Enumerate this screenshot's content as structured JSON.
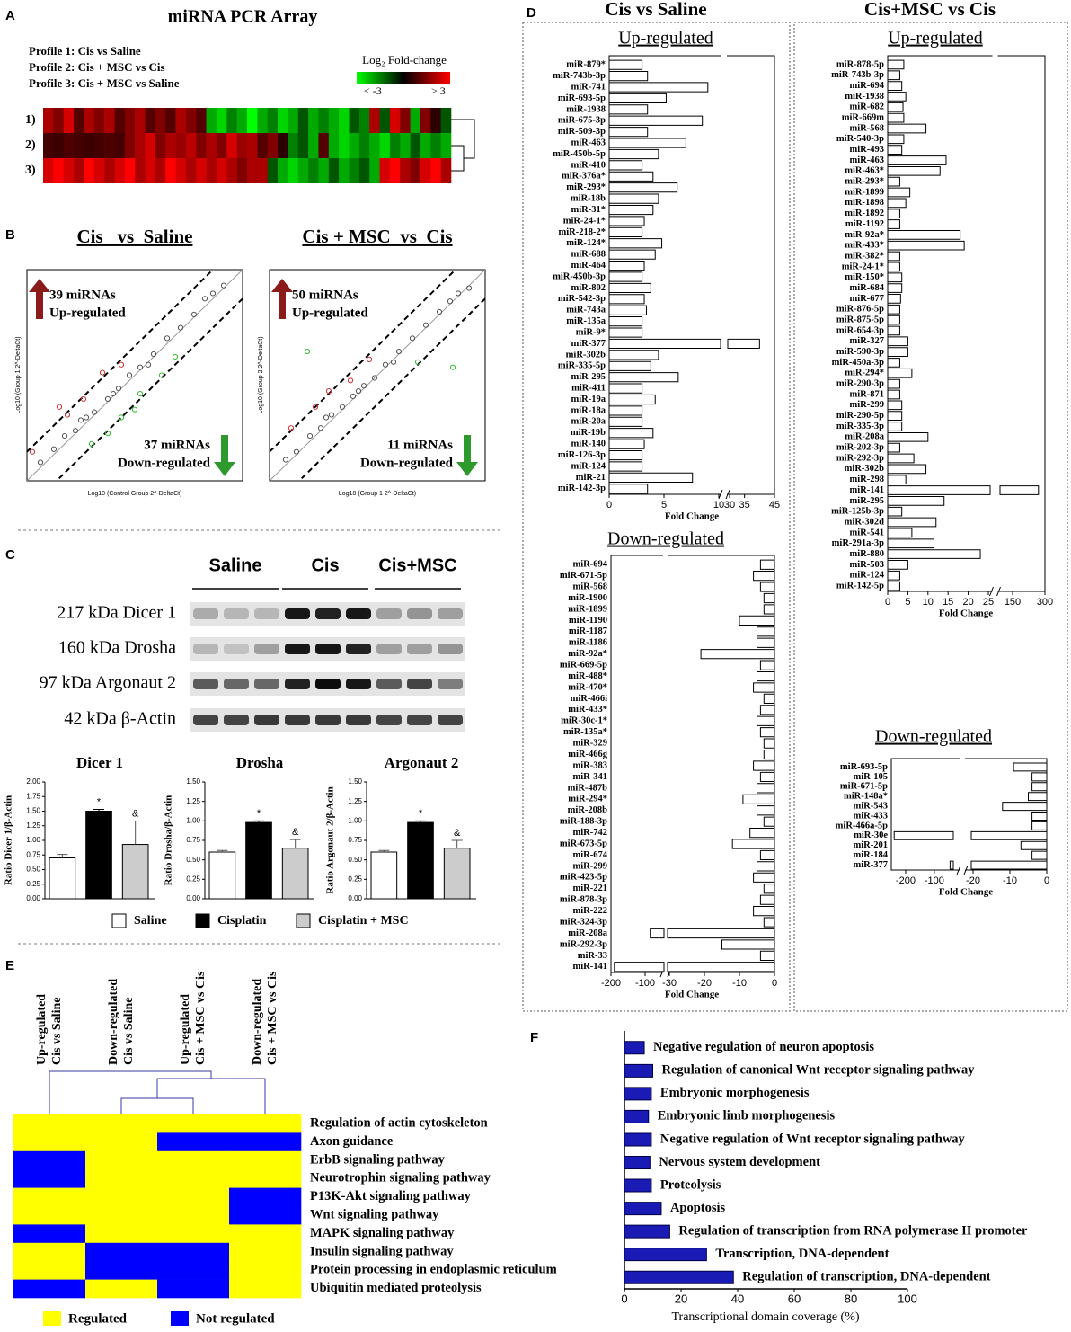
{
  "panel_labels": [
    "A",
    "B",
    "C",
    "D",
    "E",
    "F"
  ],
  "blot": {
    "column_labels": [
      "Saline",
      "Cis",
      "Cis+MSC"
    ],
    "row_labels": [
      "217 kDa Dicer 1",
      "160 kDa Drosha",
      "97 kDa Argonaut 2",
      "42 kDa β-Actin"
    ]
  },
  "panel_d": {
    "headers": [
      "Cis vs Saline",
      "Cis+MSC vs Cis"
    ]
  },
  "chart_data": [
    {
      "type": "heatmap",
      "title": "miRNA PCR Array",
      "annotations": [
        "Profile 1: Cis vs Saline",
        "Profile 2: Cis + MSC vs Cis",
        "Profile 3: Cis + MSC vs Saline"
      ],
      "legend_title": "Log₂ Fold-change",
      "clim": [
        -3,
        3
      ],
      "clim_labels": [
        "< -3",
        "> 3"
      ],
      "row_labels": [
        "1)",
        "2)",
        "3)"
      ],
      "values": [
        [
          2,
          1.5,
          2.5,
          1,
          2,
          1.5,
          2,
          1,
          1.5,
          2,
          1,
          1.5,
          1,
          2,
          1.5,
          1,
          -2,
          -2.5,
          -1.5,
          -2,
          -3,
          -2,
          -1.5,
          -2.5,
          -2,
          -1,
          -2,
          -1.5,
          -2,
          -2.5,
          -1,
          -1.5,
          2,
          -1,
          2.5,
          1.5,
          -2,
          1.5,
          0.5,
          -1
        ],
        [
          0.8,
          0.7,
          0.9,
          0.8,
          0.7,
          0.8,
          0.9,
          0.8,
          1.5,
          2,
          2.5,
          1.5,
          2,
          1.8,
          2.2,
          1.5,
          2,
          1.5,
          2.5,
          1.8,
          2,
          1,
          1.5,
          0.5,
          -1.5,
          -1,
          -2,
          1,
          -2,
          -2.5,
          -2,
          -1.5,
          -2,
          -2.5,
          -1.5,
          -2,
          -1,
          -2,
          -1.5,
          -2
        ],
        [
          2.5,
          3,
          2.5,
          2,
          3,
          2.5,
          2,
          2.5,
          3,
          2,
          2.5,
          2,
          3,
          2.5,
          2,
          2.5,
          2,
          2.5,
          2,
          1.5,
          2,
          2,
          -1,
          -2,
          -2.5,
          -2,
          -1.5,
          -2,
          -1,
          -2,
          -1.5,
          -1,
          -2,
          2.5,
          3,
          2,
          1.5,
          2.5,
          3,
          2
        ]
      ]
    },
    {
      "type": "scatter",
      "title": "Cis   vs  Saline",
      "xlabel": "Log10 (Control Group 2^-DeltaCt)",
      "ylabel": "Log10 (Group 1 2^-DeltaCt)",
      "annotations": [
        "39 miRNAs",
        "Up-regulated",
        "37 miRNAs",
        "Down-regulated"
      ],
      "xlim": [
        -6,
        2
      ],
      "ylim": [
        -6,
        2
      ],
      "series": [
        {
          "color": "#555555",
          "x": [
            -5.5,
            -5,
            -4.6,
            -4.2,
            -3.8,
            -3.5,
            -3,
            -2.6,
            -2.2,
            -1.8,
            -1.3,
            -0.8,
            -0.3,
            0.2,
            0.6,
            -4,
            -2.8,
            -1.5,
            0.9,
            1.3
          ],
          "y": [
            -5.3,
            -4.8,
            -4.3,
            -4.1,
            -3.6,
            -3.4,
            -2.9,
            -2.5,
            -2,
            -1.7,
            -1.2,
            -0.6,
            -0.2,
            0.3,
            0.9,
            -3.7,
            -2.7,
            -1.6,
            1.1,
            1.4
          ]
        },
        {
          "color": "#cc3333",
          "x": [
            -5.8,
            -4.5,
            -4.8,
            -3.2,
            -2.5,
            -3.9
          ],
          "y": [
            -4.9,
            -3.5,
            -3.2,
            -1.9,
            -1.6,
            -2.9
          ]
        },
        {
          "color": "#33bb33",
          "x": [
            -3.6,
            -2.5,
            -1.8,
            -1,
            -3,
            -0.5,
            -2
          ],
          "y": [
            -4.6,
            -3.6,
            -2.7,
            -2,
            -4.2,
            -1.3,
            -3.3
          ]
        }
      ]
    },
    {
      "type": "scatter",
      "title": "Cis + MSC  vs  Cis",
      "xlabel": "Log10 (Group 1 2^-DeltaCt)",
      "ylabel": "Log10 (Group 2 2^-DeltaCt)",
      "annotations": [
        "50 miRNAs",
        "Up-regulated",
        "11 miRNAs",
        "Down-regulated"
      ],
      "xlim": [
        -6,
        2
      ],
      "ylim": [
        -6,
        2
      ],
      "series": [
        {
          "color": "#555555",
          "x": [
            -5.4,
            -5,
            -4.5,
            -4.1,
            -3.7,
            -3.3,
            -2.9,
            -2.5,
            -2.1,
            -1.7,
            -1.2,
            -0.7,
            -0.2,
            0.3,
            0.7,
            -3.9,
            -2.7,
            -1.4,
            1,
            1.4
          ],
          "y": [
            -5.2,
            -4.9,
            -4.3,
            -4,
            -3.5,
            -3.2,
            -2.8,
            -2.4,
            -2.1,
            -1.6,
            -1.1,
            -0.6,
            -0.1,
            0.4,
            0.8,
            -3.6,
            -2.6,
            -1.5,
            1.1,
            1.3
          ]
        },
        {
          "color": "#cc3333",
          "x": [
            -5.2,
            -4.3,
            -3.8,
            -3,
            -2.3
          ],
          "y": [
            -4,
            -3.2,
            -2.6,
            -2.2,
            -1.4
          ]
        },
        {
          "color": "#33bb33",
          "x": [
            -4.6,
            0.8,
            -0.5
          ],
          "y": [
            -1.1,
            -1.7,
            -1.5
          ]
        }
      ]
    },
    {
      "type": "bar",
      "title": "Dicer 1",
      "ylabel": "Ratio Dicer 1/β-Actin",
      "values": [
        0.7,
        1.5,
        0.93
      ],
      "errors": [
        0.06,
        0.03,
        0.4
      ],
      "colors": [
        "#ffffff",
        "#000000",
        "#cccccc"
      ],
      "significance_labels": [
        null,
        "*",
        "&"
      ],
      "ylim": [
        0,
        2
      ],
      "yticks": [
        {
          "value": 0,
          "label": "0.00"
        },
        {
          "value": 0.25,
          "label": "0.25"
        },
        {
          "value": 0.5,
          "label": "0.50"
        },
        {
          "value": 0.75,
          "label": "0.75"
        },
        {
          "value": 1,
          "label": "1.00"
        },
        {
          "value": 1.25,
          "label": "1.25"
        },
        {
          "value": 1.5,
          "label": "1.50"
        },
        {
          "value": 1.75,
          "label": "1.75"
        },
        {
          "value": 2,
          "label": "2.00"
        }
      ],
      "legend": [
        {
          "name": "Saline",
          "color": "#ffffff"
        },
        {
          "name": "Cisplatin",
          "color": "#000000"
        },
        {
          "name": "Cisplatin + MSC",
          "color": "#cccccc"
        }
      ]
    },
    {
      "type": "bar",
      "title": "Drosha",
      "ylabel": "Ratio Drosha/β-Actin",
      "values": [
        0.6,
        0.98,
        0.65
      ],
      "errors": [
        0.02,
        0.02,
        0.11
      ],
      "colors": [
        "#ffffff",
        "#000000",
        "#cccccc"
      ],
      "significance_labels": [
        null,
        "*",
        "&"
      ],
      "ylim": [
        0,
        1.5
      ],
      "yticks": [
        {
          "value": 0,
          "label": "0.00"
        },
        {
          "value": 0.25,
          "label": "0.25"
        },
        {
          "value": 0.5,
          "label": "0.50"
        },
        {
          "value": 0.75,
          "label": "0.75"
        },
        {
          "value": 1,
          "label": "1.00"
        },
        {
          "value": 1.25,
          "label": "1.25"
        },
        {
          "value": 1.5,
          "label": "1.50"
        }
      ]
    },
    {
      "type": "bar",
      "title": "Argonaut 2",
      "ylabel": "Ratio Argonaut 2/β-Actin",
      "values": [
        0.6,
        0.98,
        0.65
      ],
      "errors": [
        0.02,
        0.02,
        0.1
      ],
      "colors": [
        "#ffffff",
        "#000000",
        "#cccccc"
      ],
      "significance_labels": [
        null,
        "*",
        "&"
      ],
      "ylim": [
        0,
        1.5
      ],
      "yticks": [
        {
          "value": 0,
          "label": "0.00"
        },
        {
          "value": 0.25,
          "label": "0.25"
        },
        {
          "value": 0.5,
          "label": "0.50"
        },
        {
          "value": 0.75,
          "label": "0.75"
        },
        {
          "value": 1,
          "label": "1.00"
        },
        {
          "value": 1.25,
          "label": "1.25"
        },
        {
          "value": 1.5,
          "label": "1.50"
        }
      ]
    },
    {
      "type": "hbar",
      "title": "Up-regulated",
      "xlabel": "Fold Change",
      "xlim": [
        0,
        45
      ],
      "xbreak": [
        10,
        30
      ],
      "xticks": [
        0,
        5,
        10,
        30,
        35,
        45
      ],
      "categories": [
        "miR-879*",
        "miR-743b-3p",
        "miR-741",
        "miR-693-5p",
        "miR-1938",
        "miR-675-3p",
        "miR-509-3p",
        "miR-463",
        "miR-450b-5p",
        "miR-410",
        "miR-376a*",
        "miR-293*",
        "miR-18b",
        "miR-31*",
        "miR-24-1*",
        "miR-218-2*",
        "miR-124*",
        "miR-688",
        "miR-464",
        "miR-450b-3p",
        "miR-802",
        "miR-542-3p",
        "miR-743a",
        "miR-135a",
        "miR-9*",
        "miR-377",
        "miR-302b",
        "miR-335-5p",
        "miR-295",
        "miR-411",
        "miR-19a",
        "miR-18a",
        "miR-20a",
        "miR-19b",
        "miR-140",
        "miR-126-3p",
        "miR-124",
        "miR-21",
        "miR-142-3p"
      ],
      "values": [
        3,
        3.5,
        9,
        5.2,
        3.5,
        8.5,
        3.5,
        7,
        4.5,
        3,
        4,
        6.2,
        4.5,
        4,
        3.2,
        3,
        4.8,
        4.2,
        3.2,
        3,
        3.8,
        3.2,
        3.4,
        3,
        3,
        40,
        4.5,
        3.8,
        6.3,
        3,
        4.2,
        3,
        3,
        4,
        3.2,
        3,
        3,
        7.6,
        3.5
      ]
    },
    {
      "type": "hbar",
      "title": "Down-regulated",
      "xlabel": "Fold Change",
      "xlim": [
        -200,
        0
      ],
      "xbreak": [
        -50,
        -30
      ],
      "xticks": [
        -200,
        -100,
        -30,
        -20,
        -10,
        0
      ],
      "categories": [
        "miR-694",
        "miR-671-5p",
        "miR-568",
        "miR-1900",
        "miR-1899",
        "miR-1190",
        "miR-1187",
        "miR-1186",
        "miR-92a*",
        "miR-669-5p",
        "miR-488*",
        "miR-470*",
        "miR-466i",
        "miR-433*",
        "miR-30c-1*",
        "miR-135a*",
        "miR-329",
        "miR-466g",
        "miR-383",
        "miR-341",
        "miR-487b",
        "miR-294*",
        "miR-208b",
        "miR-188-3p",
        "miR-742",
        "miR-673-5p",
        "miR-674",
        "miR-299",
        "miR-423-5p",
        "miR-221",
        "miR-878-3p",
        "miR-222",
        "miR-324-3p",
        "miR-208a",
        "miR-292-3p",
        "miR-33",
        "miR-141"
      ],
      "values": [
        -4,
        -6,
        -4,
        -3,
        -3,
        -10,
        -5,
        -5,
        -21,
        -4,
        -5,
        -6,
        -3,
        -4,
        -5,
        -4,
        -3,
        -3,
        -6,
        -4,
        -5,
        -9,
        -5,
        -3,
        -7,
        -12,
        -4,
        -5,
        -6,
        -3,
        -4,
        -6,
        -3,
        -85,
        -15,
        -4,
        -190
      ]
    },
    {
      "type": "hbar",
      "title": "Up-regulated",
      "xlabel": "Fold Change",
      "xlim": [
        0,
        300
      ],
      "xbreak": [
        25,
        100
      ],
      "xticks": [
        0,
        5,
        10,
        15,
        20,
        25,
        150,
        300
      ],
      "categories": [
        "miR-878-5p",
        "miR-743b-3p",
        "miR-694",
        "miR-1938",
        "miR-682",
        "miR-669m",
        "miR-568",
        "miR-540-3p",
        "miR-493",
        "miR-463",
        "miR-463*",
        "miR-293*",
        "miR-1899",
        "miR-1898",
        "miR-1892",
        "miR-1192",
        "miR-92a*",
        "miR-433*",
        "miR-382*",
        "miR-24-1*",
        "miR-150*",
        "miR-684",
        "miR-677",
        "miR-876-5p",
        "miR-875-5p",
        "miR-654-3p",
        "miR-327",
        "miR-590-3p",
        "miR-450a-3p",
        "miR-294*",
        "miR-290-3p",
        "miR-871",
        "miR-299",
        "miR-290-5p",
        "miR-335-3p",
        "miR-208a",
        "miR-202-3p",
        "miR-292-3p",
        "miR-302b",
        "miR-298",
        "miR-141",
        "miR-295",
        "miR-125b-3p",
        "miR-302d",
        "miR-541",
        "miR-291a-3p",
        "miR-880",
        "miR-503",
        "miR-124",
        "miR-142-5p"
      ],
      "values": [
        4,
        3,
        3.5,
        4.5,
        3.8,
        4,
        9.5,
        4,
        3.5,
        14.5,
        13,
        3,
        5.5,
        4.5,
        3,
        3,
        18,
        19,
        3,
        3,
        3.5,
        3.5,
        3.2,
        3,
        3,
        3,
        5,
        5,
        3,
        6,
        3,
        3,
        3.5,
        3.5,
        3.5,
        10,
        3,
        6.5,
        9.5,
        4.5,
        270,
        14,
        3.5,
        12,
        6,
        11.5,
        23,
        5,
        3,
        3
      ]
    },
    {
      "type": "hbar",
      "title": "Down-regulated",
      "xlabel": "Fold Change",
      "xlim": [
        -250,
        0
      ],
      "xbreak": [
        -40,
        -20
      ],
      "xticks": [
        -200,
        -100,
        -20,
        -10,
        0
      ],
      "categories": [
        "miR-693-5p",
        "miR-105",
        "miR-671-5p",
        "miR-148a*",
        "miR-543",
        "miR-433",
        "miR-466a-5p",
        "miR-30e",
        "miR-201",
        "miR-184",
        "miR-377"
      ],
      "values": [
        -9,
        -4,
        -4,
        -5,
        -12,
        -4,
        -4,
        -240,
        -7,
        -4,
        -45
      ]
    },
    {
      "type": "heatmap",
      "column_labels": [
        [
          "Up-regulated",
          "Cis vs Saline"
        ],
        [
          "Down-regulated",
          "Cis vs Saline"
        ],
        [
          "Up-regulated",
          "Cis + MSC vs Cis"
        ],
        [
          "Down-regulated",
          "Cis + MSC vs Cis"
        ]
      ],
      "row_labels": [
        "Regulation of actin cytoskeleton",
        "Axon guidance",
        "ErbB signaling pathway",
        "Neurotrophin signaling pathway",
        "P13K-Akt signaling pathway",
        "Wnt signaling pathway",
        "MAPK signaling pathway",
        "Insulin signaling pathway",
        "Protein processing in endoplasmic reticulum",
        "Ubiquitin mediated proteolysis"
      ],
      "values": [
        [
          1,
          1,
          1,
          1
        ],
        [
          1,
          1,
          0,
          0
        ],
        [
          0,
          1,
          1,
          1
        ],
        [
          0,
          1,
          1,
          1
        ],
        [
          1,
          1,
          1,
          0
        ],
        [
          1,
          1,
          1,
          0
        ],
        [
          0,
          1,
          1,
          1
        ],
        [
          1,
          0,
          0,
          1
        ],
        [
          1,
          0,
          0,
          1
        ],
        [
          0,
          1,
          0,
          1
        ]
      ],
      "legend": [
        {
          "name": "Regulated",
          "color": "#ffff00",
          "value": 1
        },
        {
          "name": "Not regulated",
          "color": "#0000ff",
          "value": 0
        }
      ]
    },
    {
      "type": "hbar",
      "xlabel": "Transcriptional domain coverage (%)",
      "color": "#1a1ab4",
      "xlim": [
        0,
        100
      ],
      "xticks": [
        0,
        20,
        40,
        60,
        80,
        100
      ],
      "categories": [
        "Negative regulation of neuron apoptosis",
        "Regulation of canonical Wnt receptor signaling pathway",
        "Embryonic morphogenesis",
        "Embryonic limb morphogenesis",
        "Negative regulation of Wnt receptor signaling pathway",
        "Nervous system development",
        "Proteolysis",
        "Apoptosis",
        "Regulation of transcription from RNA polymerase II promoter",
        "Transcription, DNA-dependent",
        "Regulation of transcription, DNA-dependent"
      ],
      "values": [
        7,
        10,
        9.5,
        8.5,
        9.5,
        9,
        9.5,
        13,
        16,
        29,
        38.5
      ]
    }
  ]
}
